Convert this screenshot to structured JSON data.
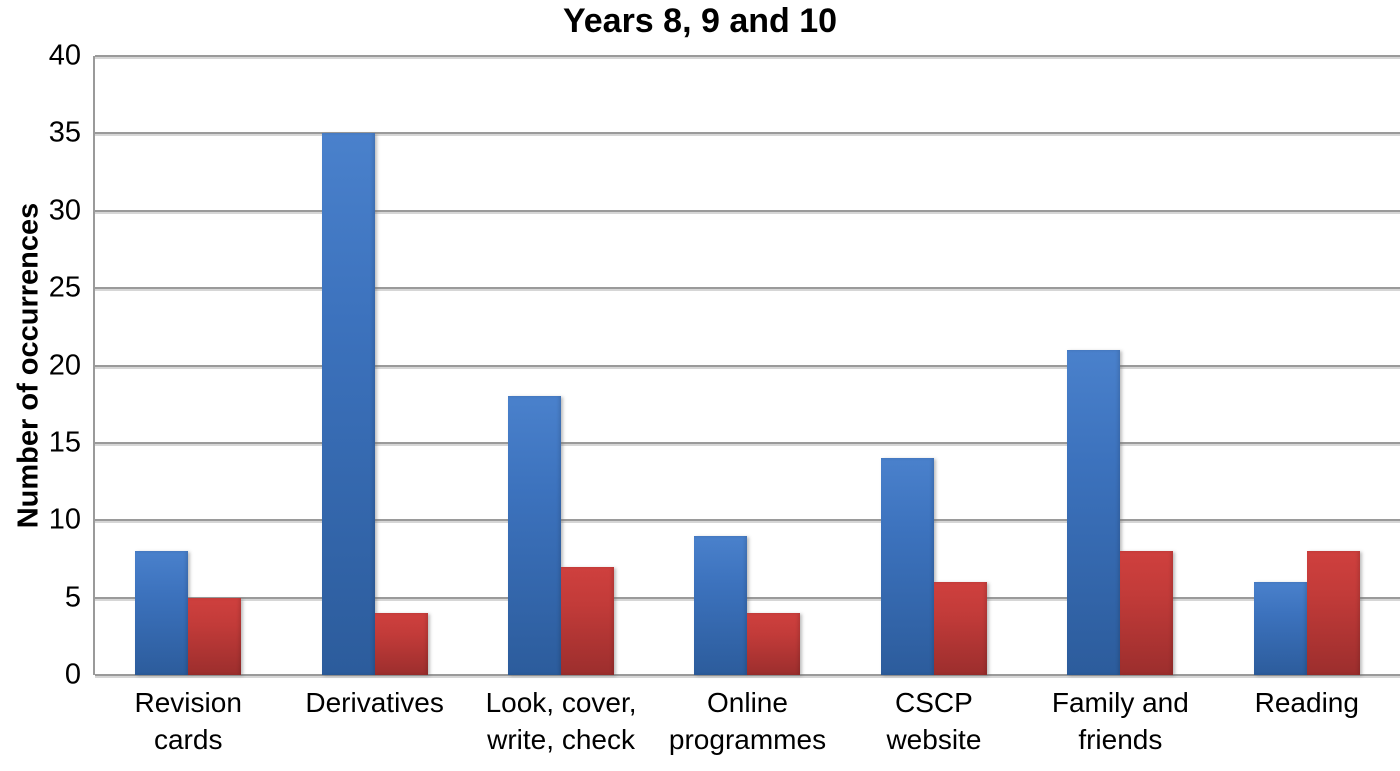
{
  "chart_data": {
    "type": "bar",
    "title": "Years 8, 9 and 10",
    "xlabel": "",
    "ylabel": "Number of occurrences",
    "ylim": [
      0,
      40
    ],
    "yticks": [
      0,
      5,
      10,
      15,
      20,
      25,
      30,
      35,
      40
    ],
    "grid": true,
    "legend": "none",
    "categories": [
      "Revision cards",
      "Derivatives",
      "Look, cover, write, check",
      "Online programmes",
      "CSCP website",
      "Family and friends",
      "Reading"
    ],
    "category_label_lines": [
      [
        "Revision",
        "cards"
      ],
      [
        "Derivatives"
      ],
      [
        "Look, cover,",
        "write, check"
      ],
      [
        "Online",
        "programmes"
      ],
      [
        "CSCP",
        "website"
      ],
      [
        "Family and",
        "friends"
      ],
      [
        "Reading"
      ]
    ],
    "series": [
      {
        "name": "blue",
        "color": "#3c72bd",
        "values": [
          8,
          35,
          18,
          9,
          14,
          21,
          6
        ]
      },
      {
        "name": "red",
        "color": "#c23b39",
        "values": [
          5,
          4,
          7,
          4,
          6,
          8,
          8
        ]
      }
    ],
    "gridline_color": "#9a9a9a",
    "axis_color": "#9a9a9a",
    "background": "#ffffff"
  }
}
